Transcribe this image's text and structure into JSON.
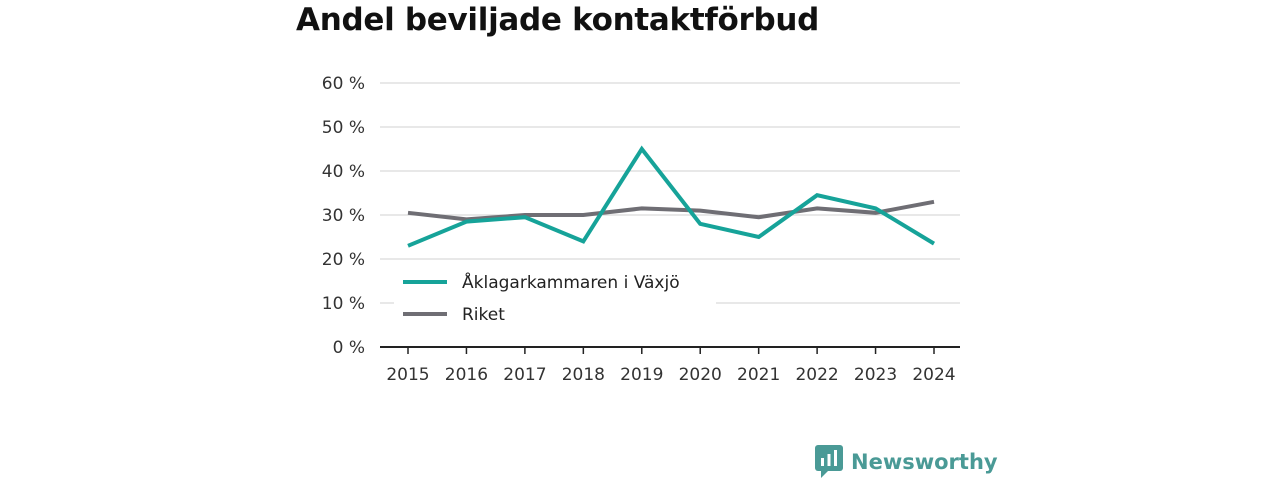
{
  "title": "Andel beviljade kontaktförbud",
  "brand": {
    "name": "Newsworthy",
    "icon": "newsworthy-logo-icon",
    "color": "#4a9a96"
  },
  "chart_data": {
    "type": "line",
    "x": [
      "2015",
      "2016",
      "2017",
      "2018",
      "2019",
      "2020",
      "2021",
      "2022",
      "2023",
      "2024"
    ],
    "y_ticks": [
      "0 %",
      "10 %",
      "20 %",
      "30 %",
      "40 %",
      "50 %",
      "60 %"
    ],
    "ylim": [
      0,
      60
    ],
    "grid": true,
    "legend_position": "lower-left",
    "series": [
      {
        "name": "Åklagarkammaren i Växjö",
        "color": "#16a399",
        "values": [
          23,
          28.5,
          29.5,
          24,
          45,
          28,
          25,
          34.5,
          31.5,
          23.5
        ]
      },
      {
        "name": "Riket",
        "color": "#6f6e74",
        "values": [
          30.5,
          29,
          30,
          30,
          31.5,
          31,
          29.5,
          31.5,
          30.5,
          33
        ]
      }
    ]
  }
}
